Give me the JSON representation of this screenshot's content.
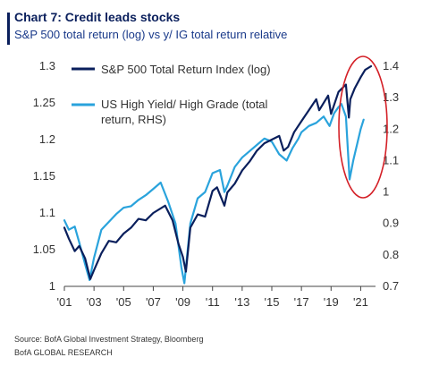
{
  "header": {
    "title": "Chart 7: Credit leads stocks",
    "subtitle": "S&P 500 total return (log) vs y/ IG total return relative"
  },
  "footer": {
    "source": "Source:  BofA Global Investment Strategy, Bloomberg",
    "brand": "BofA GLOBAL RESEARCH"
  },
  "chart_data": {
    "type": "line",
    "title": "Chart 7: Credit leads stocks",
    "subtitle": "S&P 500 total return (log) vs y/ IG total return relative",
    "x_tick_labels": [
      "'01",
      "'03",
      "'05",
      "'07",
      "'09",
      "'11",
      "'13",
      "'15",
      "'17",
      "'19",
      "'21"
    ],
    "x_range": [
      2001,
      2022
    ],
    "y_left": {
      "range": [
        1.0,
        1.3
      ],
      "ticks": [
        1,
        1.05,
        1.1,
        1.15,
        1.2,
        1.25,
        1.3
      ],
      "tick_labels": [
        "1",
        "1.05",
        "1.1",
        "1.15",
        "1.2",
        "1.25",
        "1.3"
      ]
    },
    "y_right": {
      "range": [
        0.7,
        1.4
      ],
      "ticks": [
        0.7,
        0.8,
        0.9,
        1.0,
        1.1,
        1.2,
        1.3,
        1.4
      ],
      "tick_labels": [
        "0.7",
        "0.8",
        "0.9",
        "1",
        "1.1",
        "1.2",
        "1.3",
        "1.4"
      ]
    },
    "legend_position": "top-left",
    "colors": {
      "sp500": "#0a1f5c",
      "hy_hg": "#2aa3dc",
      "highlight": "#d42027"
    },
    "series": [
      {
        "name": "S&P 500 Total Return Index (log)",
        "axis": "left",
        "color": "#0a1f5c",
        "x": [
          2001.0,
          2001.3,
          2001.7,
          2002.0,
          2002.4,
          2002.75,
          2003.0,
          2003.5,
          2004.0,
          2004.5,
          2005.0,
          2005.5,
          2006.0,
          2006.5,
          2007.0,
          2007.8,
          2008.3,
          2008.7,
          2009.0,
          2009.2,
          2009.5,
          2010.0,
          2010.5,
          2011.0,
          2011.3,
          2011.8,
          2012.0,
          2012.5,
          2013.0,
          2013.5,
          2014.0,
          2014.5,
          2015.0,
          2015.5,
          2015.8,
          2016.1,
          2016.5,
          2017.0,
          2017.5,
          2018.0,
          2018.2,
          2018.8,
          2019.0,
          2019.5,
          2020.0,
          2020.2,
          2020.3,
          2020.6,
          2021.0,
          2021.3,
          2021.7
        ],
        "y": [
          1.08,
          1.065,
          1.048,
          1.055,
          1.038,
          1.01,
          1.022,
          1.045,
          1.062,
          1.06,
          1.072,
          1.08,
          1.092,
          1.09,
          1.1,
          1.11,
          1.09,
          1.058,
          1.04,
          1.02,
          1.08,
          1.098,
          1.095,
          1.13,
          1.135,
          1.11,
          1.128,
          1.14,
          1.158,
          1.17,
          1.185,
          1.195,
          1.2,
          1.205,
          1.185,
          1.19,
          1.21,
          1.225,
          1.24,
          1.255,
          1.24,
          1.26,
          1.235,
          1.265,
          1.275,
          1.23,
          1.255,
          1.27,
          1.285,
          1.295,
          1.3
        ]
      },
      {
        "name": "US High Yield/ High Grade (total return, RHS)",
        "axis": "right",
        "color": "#2aa3dc",
        "x": [
          2001.0,
          2001.3,
          2001.7,
          2002.0,
          2002.4,
          2002.7,
          2003.0,
          2003.5,
          2004.0,
          2004.5,
          2005.0,
          2005.5,
          2006.0,
          2006.5,
          2007.0,
          2007.5,
          2008.0,
          2008.5,
          2008.9,
          2009.1,
          2009.5,
          2010.0,
          2010.5,
          2011.0,
          2011.5,
          2011.8,
          2012.0,
          2012.5,
          2013.0,
          2013.5,
          2014.0,
          2014.5,
          2015.0,
          2015.5,
          2016.0,
          2016.4,
          2016.8,
          2017.0,
          2017.5,
          2018.0,
          2018.5,
          2018.9,
          2019.2,
          2019.5,
          2019.7,
          2020.0,
          2020.25,
          2020.5,
          2020.8,
          2021.0,
          2021.2
        ],
        "y": [
          0.91,
          0.88,
          0.89,
          0.84,
          0.77,
          0.72,
          0.79,
          0.88,
          0.905,
          0.93,
          0.95,
          0.955,
          0.975,
          0.99,
          1.01,
          1.03,
          0.97,
          0.9,
          0.76,
          0.71,
          0.9,
          0.98,
          1.0,
          1.06,
          1.07,
          1.0,
          1.02,
          1.08,
          1.11,
          1.13,
          1.15,
          1.17,
          1.16,
          1.12,
          1.1,
          1.14,
          1.17,
          1.19,
          1.21,
          1.22,
          1.24,
          1.21,
          1.25,
          1.27,
          1.28,
          1.24,
          1.04,
          1.1,
          1.16,
          1.2,
          1.23
        ]
      }
    ]
  }
}
